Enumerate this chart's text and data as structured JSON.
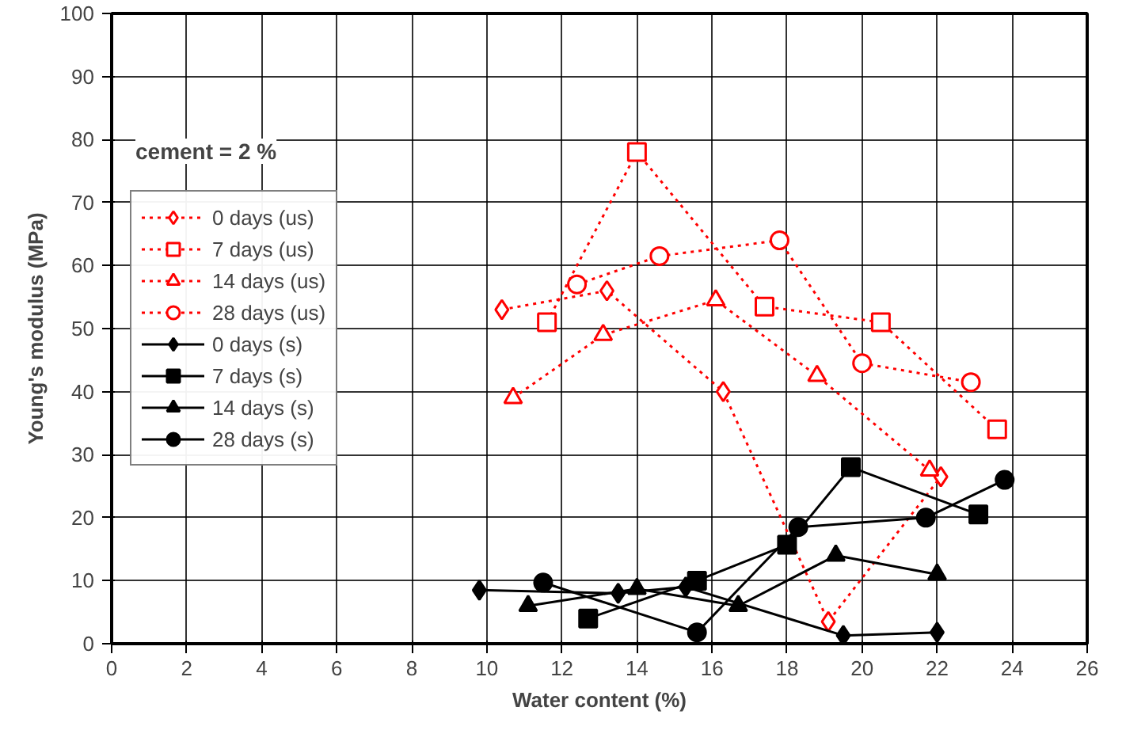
{
  "chart_data": {
    "type": "line",
    "xlabel": "Water content (%)",
    "ylabel": "Young's modulus (MPa)",
    "annotations": [
      "cement = 2 %"
    ],
    "xlim": [
      0,
      26
    ],
    "xticks": [
      0,
      2,
      4,
      6,
      8,
      10,
      12,
      14,
      16,
      18,
      20,
      22,
      24,
      26
    ],
    "ylim": [
      0,
      100
    ],
    "yticks": [
      0,
      10,
      20,
      30,
      40,
      50,
      60,
      70,
      80,
      90,
      100
    ],
    "grid": true,
    "legend": "left",
    "series": [
      {
        "name": "0 days (us)",
        "color": "#ff0000",
        "marker": "diamond",
        "line_style": "dotted",
        "x": [
          10.4,
          13.2,
          16.3,
          19.1,
          22.1
        ],
        "values": [
          53,
          56,
          40,
          3.5,
          26.5
        ]
      },
      {
        "name": "7 days (us)",
        "color": "#ff0000",
        "marker": "square",
        "line_style": "dotted",
        "x": [
          11.6,
          14,
          17.4,
          20.5,
          23.6
        ],
        "values": [
          51,
          78,
          53.5,
          51,
          34
        ]
      },
      {
        "name": "14 days (us)",
        "color": "#ff0000",
        "marker": "triangle",
        "line_style": "dotted",
        "x": [
          10.7,
          13.1,
          16.1,
          18.8,
          21.8
        ],
        "values": [
          39,
          49,
          54.5,
          42.5,
          27.5
        ]
      },
      {
        "name": "28 days (us)",
        "color": "#ff0000",
        "marker": "circle",
        "line_style": "dotted",
        "x": [
          12.4,
          14.6,
          17.8,
          20,
          22.9
        ],
        "values": [
          57,
          61.5,
          64,
          44.5,
          41.5
        ]
      },
      {
        "name": "0 days (s)",
        "color": "#000000",
        "marker": "diamond",
        "line_style": "solid",
        "x": [
          9.8,
          13.5,
          15.3,
          19.5,
          22
        ],
        "values": [
          8.5,
          8,
          9,
          1.3,
          1.8
        ]
      },
      {
        "name": "7 days (s)",
        "color": "#000000",
        "marker": "square",
        "line_style": "solid",
        "x": [
          12.7,
          15.6,
          18,
          19.7,
          23.1
        ],
        "values": [
          4,
          10,
          15.7,
          28,
          20.5
        ]
      },
      {
        "name": "14 days (s)",
        "color": "#000000",
        "marker": "triangle",
        "line_style": "solid",
        "x": [
          11.1,
          14,
          16.7,
          19.3,
          22
        ],
        "values": [
          6,
          8.7,
          6,
          14,
          11
        ]
      },
      {
        "name": "28 days (s)",
        "color": "#000000",
        "marker": "circle",
        "line_style": "solid",
        "x": [
          11.5,
          15.6,
          18.3,
          21.7,
          23.8
        ],
        "values": [
          9.7,
          1.8,
          18.5,
          20,
          26
        ]
      }
    ]
  }
}
